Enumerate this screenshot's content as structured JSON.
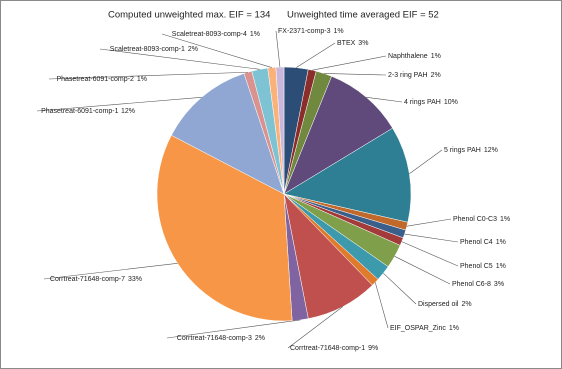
{
  "chart_data": {
    "type": "pie",
    "title": "Computed unweighted max. EIF = 134",
    "subtitle": "Unweighted time averaged EIF = 52",
    "categories": [
      "BTEX",
      "Naphthalene",
      "2-3 ring PAH",
      "4 rings PAH",
      "5 rings PAH",
      "Phenol C0-C3",
      "Phenol C4",
      "Phenol C5",
      "Phenol C6-8",
      "Dispersed oil",
      "EIF_OSPAR_Zinc",
      "Corrtreat-71648-comp-1",
      "Corrtreat-71648-comp-3",
      "Corrtreat-71648-comp-7",
      "Phasetreat-6091-comp-1",
      "Phasetreat-6091-comp-2",
      "Scaletreat-8093-comp-1",
      "Scaletreat-8093-comp-4",
      "FX-2371-comp-3"
    ],
    "values": [
      3,
      1,
      2,
      10,
      12,
      1,
      1,
      1,
      3,
      2,
      1,
      9,
      2,
      33,
      12,
      1,
      2,
      1,
      1
    ],
    "value_labels": [
      "3%",
      "1%",
      "2%",
      "10%",
      "12%",
      "1%",
      "1%",
      "1%",
      "3%",
      "2%",
      "1%",
      "9%",
      "2%",
      "33%",
      "12%",
      "1%",
      "2%",
      "1%",
      "1%"
    ],
    "colors": [
      "#2c4d75",
      "#8b2d2b",
      "#71893f",
      "#5f4a7b",
      "#2e7f94",
      "#c0692a",
      "#3a5f8a",
      "#a33b3b",
      "#7f9f4a",
      "#3d9aad",
      "#e07b2d",
      "#c0504d",
      "#8064a2",
      "#f79646",
      "#8fa7d2",
      "#d9928f",
      "#7ec3d4",
      "#fab27a",
      "#c9b8dc"
    ]
  }
}
